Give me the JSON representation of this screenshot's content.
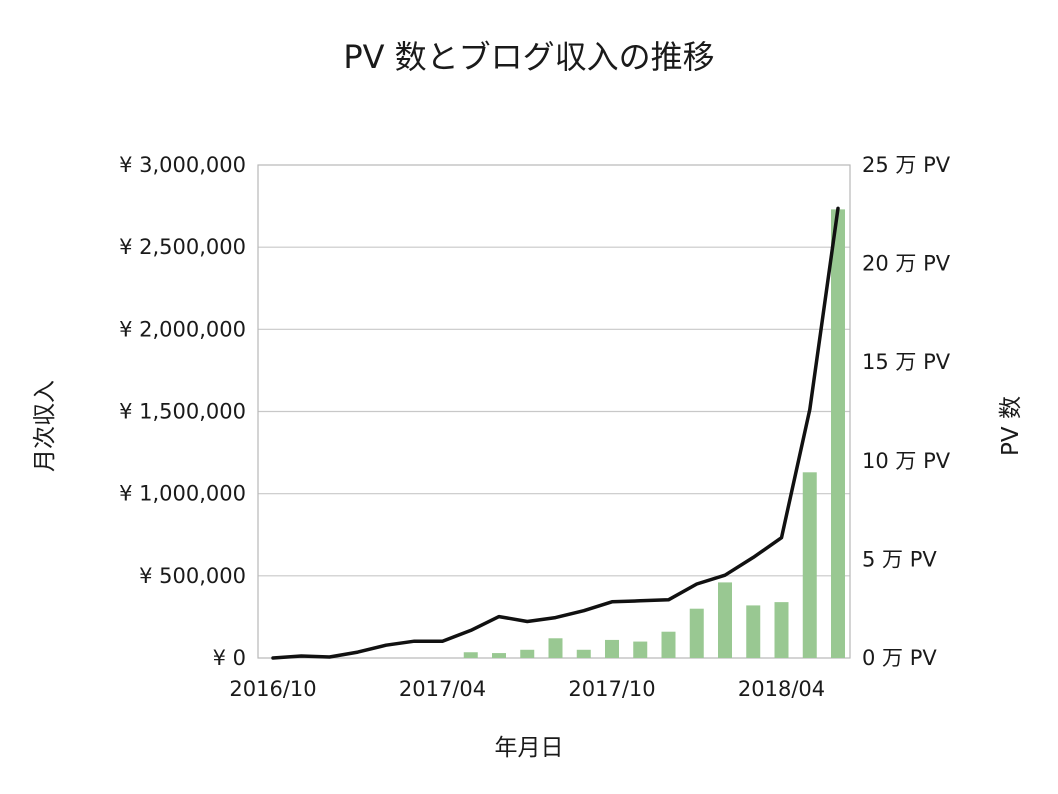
{
  "chart_data": {
    "type": "bar",
    "title": "PV 数とブログ収入の推移",
    "xlabel": "年月日",
    "ylabel_left": "月次収入",
    "ylabel_right": "PV 数",
    "x_tick_labels": [
      "2016/10",
      "2017/04",
      "2017/10",
      "2018/04"
    ],
    "y_left_ticks": [
      "¥ 0",
      "¥ 500,000",
      "¥ 1,000,000",
      "¥ 1,500,000",
      "¥ 2,000,000",
      "¥ 2,500,000",
      "¥ 3,000,000"
    ],
    "y_right_ticks": [
      "0 万 PV",
      "5 万 PV",
      "10 万 PV",
      "15 万 PV",
      "20 万 PV",
      "25 万 PV"
    ],
    "ylim_left": [
      0,
      3000000
    ],
    "ylim_right": [
      0,
      25
    ],
    "grid": true,
    "categories": [
      "2016/10",
      "2016/11",
      "2016/12",
      "2017/01",
      "2017/02",
      "2017/03",
      "2017/04",
      "2017/05",
      "2017/06",
      "2017/07",
      "2017/08",
      "2017/09",
      "2017/10",
      "2017/11",
      "2017/12",
      "2018/01",
      "2018/02",
      "2018/03",
      "2018/04",
      "2018/05",
      "2018/06"
    ],
    "series": [
      {
        "kind": "bar",
        "axis": "left",
        "color": "#99c892",
        "values": [
          0,
          0,
          0,
          0,
          0,
          0,
          0,
          35000,
          30000,
          50000,
          120000,
          50000,
          110000,
          100000,
          160000,
          300000,
          460000,
          320000,
          340000,
          1130000,
          2730000
        ]
      },
      {
        "kind": "line",
        "axis": "right",
        "color": "#111111",
        "values": [
          0.0,
          0.1,
          0.05,
          0.3,
          0.65,
          0.85,
          0.85,
          1.4,
          2.1,
          1.85,
          2.05,
          2.4,
          2.85,
          2.9,
          2.95,
          3.75,
          4.2,
          5.1,
          6.1,
          12.6,
          22.8
        ]
      }
    ]
  }
}
